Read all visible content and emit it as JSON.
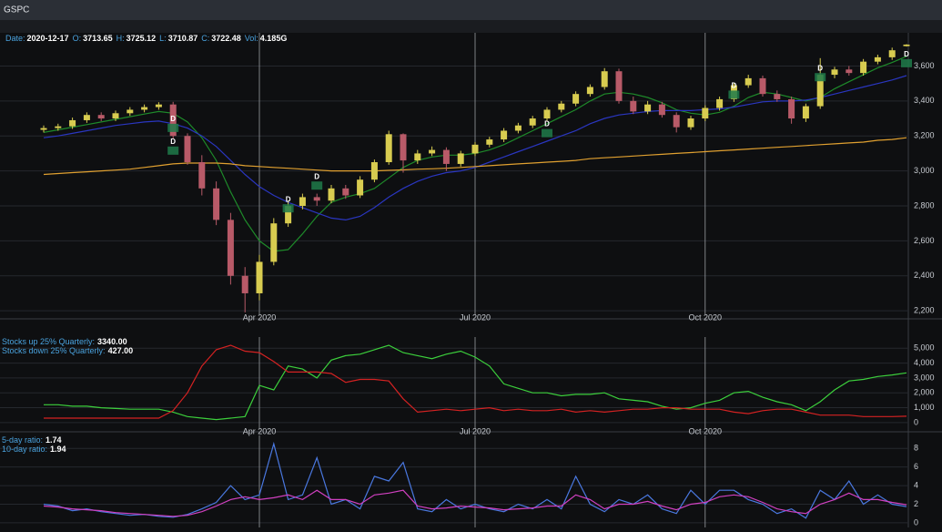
{
  "window_title": "GSPC",
  "chart_data": [
    {
      "type": "candlestick",
      "info": [
        {
          "label": "Date:",
          "value": "2020-12-17"
        },
        {
          "label": "O:",
          "value": "3713.65"
        },
        {
          "label": "H:",
          "value": "3725.12"
        },
        {
          "label": "L:",
          "value": "3710.87"
        },
        {
          "label": "C:",
          "value": "3722.48"
        },
        {
          "label": "Vol:",
          "value": "4.185G"
        }
      ],
      "categories": [
        null,
        null,
        null,
        null,
        null,
        null,
        null,
        null,
        null,
        null,
        null,
        null,
        null,
        null,
        null,
        "Apr 2020",
        null,
        null,
        null,
        null,
        null,
        null,
        null,
        null,
        null,
        null,
        null,
        null,
        null,
        null,
        "Jul 2020",
        null,
        null,
        null,
        null,
        null,
        null,
        null,
        null,
        null,
        null,
        null,
        null,
        null,
        null,
        null,
        "Oct 2020",
        null,
        null,
        null,
        null,
        null,
        null,
        null,
        null,
        null,
        null,
        null,
        null,
        null,
        null
      ],
      "open": [
        3235,
        3245,
        3255,
        3290,
        3320,
        3300,
        3330,
        3350,
        3365,
        3380,
        3200,
        3050,
        2900,
        2720,
        2400,
        2300,
        2480,
        2700,
        2800,
        2850,
        2830,
        2900,
        2860,
        2950,
        3050,
        3210,
        3060,
        3100,
        3120,
        3040,
        3100,
        3150,
        3180,
        3230,
        3260,
        3300,
        3350,
        3385,
        3440,
        3480,
        3570,
        3400,
        3340,
        3380,
        3320,
        3250,
        3300,
        3360,
        3410,
        3490,
        3530,
        3440,
        3410,
        3300,
        3370,
        3550,
        3580,
        3560,
        3625,
        3650,
        3713.65
      ],
      "high": [
        3260,
        3270,
        3305,
        3335,
        3335,
        3345,
        3365,
        3380,
        3393,
        3395,
        3215,
        3090,
        2940,
        2760,
        2450,
        2520,
        2730,
        2830,
        2870,
        2870,
        2920,
        2920,
        2970,
        3065,
        3230,
        3215,
        3120,
        3140,
        3135,
        3115,
        3165,
        3195,
        3245,
        3275,
        3315,
        3365,
        3400,
        3455,
        3495,
        3588,
        3585,
        3425,
        3400,
        3395,
        3335,
        3315,
        3375,
        3425,
        3505,
        3550,
        3545,
        3460,
        3425,
        3385,
        3645,
        3595,
        3600,
        3640,
        3665,
        3705,
        3725.12
      ],
      "low": [
        3220,
        3230,
        3240,
        3275,
        3285,
        3285,
        3315,
        3335,
        3350,
        3185,
        3035,
        2860,
        2690,
        2350,
        2191,
        2260,
        2460,
        2680,
        2780,
        2800,
        2815,
        2840,
        2845,
        2935,
        3035,
        2990,
        3040,
        3085,
        3000,
        3025,
        3085,
        3135,
        3165,
        3215,
        3245,
        3285,
        3335,
        3370,
        3425,
        3465,
        3385,
        3325,
        3325,
        3305,
        3220,
        3235,
        3285,
        3345,
        3395,
        3475,
        3425,
        3395,
        3270,
        3280,
        3355,
        3530,
        3545,
        3545,
        3610,
        3635,
        3710.87
      ],
      "close": [
        3245,
        3255,
        3290,
        3320,
        3300,
        3330,
        3350,
        3365,
        3380,
        3200,
        3050,
        2900,
        2720,
        2400,
        2300,
        2480,
        2700,
        2800,
        2850,
        2830,
        2900,
        2860,
        2950,
        3050,
        3210,
        3060,
        3100,
        3120,
        3040,
        3100,
        3150,
        3180,
        3230,
        3260,
        3300,
        3350,
        3385,
        3440,
        3480,
        3570,
        3400,
        3340,
        3380,
        3320,
        3250,
        3300,
        3360,
        3410,
        3490,
        3530,
        3440,
        3410,
        3300,
        3370,
        3550,
        3580,
        3560,
        3625,
        3650,
        3690,
        3722.48
      ],
      "up_color": "#d8cc50",
      "down_color": "#b85a68",
      "series": [
        {
          "color": "#1e8a2a",
          "values": [
            3220,
            3235,
            3250,
            3265,
            3280,
            3295,
            3310,
            3325,
            3340,
            3330,
            3280,
            3190,
            3060,
            2880,
            2720,
            2600,
            2540,
            2550,
            2640,
            2740,
            2820,
            2850,
            2870,
            2900,
            2960,
            3020,
            3060,
            3080,
            3090,
            3090,
            3100,
            3120,
            3150,
            3190,
            3230,
            3270,
            3310,
            3350,
            3400,
            3440,
            3450,
            3440,
            3420,
            3390,
            3350,
            3330,
            3320,
            3335,
            3370,
            3420,
            3450,
            3440,
            3420,
            3400,
            3420,
            3470,
            3510,
            3550,
            3590,
            3620,
            3655
          ]
        },
        {
          "color": "#2a36c0",
          "values": [
            3190,
            3200,
            3215,
            3230,
            3245,
            3260,
            3270,
            3280,
            3285,
            3270,
            3245,
            3200,
            3140,
            3060,
            2980,
            2910,
            2860,
            2820,
            2790,
            2760,
            2730,
            2720,
            2740,
            2790,
            2850,
            2900,
            2940,
            2970,
            2990,
            3000,
            3020,
            3050,
            3080,
            3110,
            3140,
            3170,
            3200,
            3230,
            3270,
            3300,
            3320,
            3330,
            3340,
            3345,
            3345,
            3345,
            3350,
            3355,
            3365,
            3380,
            3395,
            3400,
            3400,
            3405,
            3420,
            3440,
            3460,
            3480,
            3500,
            3520,
            3545
          ]
        },
        {
          "color": "#e0a030",
          "values": [
            2980,
            2985,
            2990,
            2995,
            3000,
            3005,
            3010,
            3020,
            3030,
            3040,
            3045,
            3045,
            3045,
            3040,
            3030,
            3025,
            3020,
            3015,
            3010,
            3005,
            3000,
            3000,
            3000,
            3000,
            3003,
            3006,
            3010,
            3012,
            3015,
            3020,
            3025,
            3030,
            3035,
            3040,
            3045,
            3050,
            3055,
            3060,
            3070,
            3075,
            3080,
            3085,
            3090,
            3095,
            3100,
            3105,
            3110,
            3115,
            3120,
            3125,
            3130,
            3135,
            3140,
            3145,
            3150,
            3155,
            3160,
            3165,
            3175,
            3180,
            3190
          ]
        }
      ],
      "annotations": [
        {
          "text": "D",
          "x": 9,
          "y": 3280
        },
        {
          "text": "D",
          "x": 9,
          "y": 3150
        },
        {
          "text": "D",
          "x": 17,
          "y": 2820
        },
        {
          "text": "D",
          "x": 19,
          "y": 2950
        },
        {
          "text": "D",
          "x": 35,
          "y": 3250
        },
        {
          "text": "D",
          "x": 48,
          "y": 3470
        },
        {
          "text": "D",
          "x": 54,
          "y": 3570
        },
        {
          "text": "D",
          "x": 60,
          "y": 3650
        }
      ],
      "ylim": [
        2180,
        3790
      ],
      "yticks": [
        {
          "value": 2200,
          "label": "2,200"
        },
        {
          "value": 2400,
          "label": "2,400"
        },
        {
          "value": 2600,
          "label": "2,600"
        },
        {
          "value": 2800,
          "label": "2,800"
        },
        {
          "value": 3000,
          "label": "3,000"
        },
        {
          "value": 3200,
          "label": "3,200"
        },
        {
          "value": 3400,
          "label": "3,400"
        },
        {
          "value": 3600,
          "label": "3,600"
        }
      ],
      "grid": true
    },
    {
      "type": "line",
      "categories": [
        null,
        null,
        null,
        null,
        null,
        null,
        null,
        null,
        null,
        null,
        null,
        null,
        null,
        null,
        null,
        "Apr 2020",
        null,
        null,
        null,
        null,
        null,
        null,
        null,
        null,
        null,
        null,
        null,
        null,
        null,
        null,
        "Jul 2020",
        null,
        null,
        null,
        null,
        null,
        null,
        null,
        null,
        null,
        null,
        null,
        null,
        null,
        null,
        null,
        "Oct 2020",
        null,
        null,
        null,
        null,
        null,
        null,
        null,
        null,
        null,
        null,
        null,
        null,
        null,
        null
      ],
      "series": [
        {
          "name": "Stocks up 25% Quarterly:",
          "last_label": "3340.00",
          "color": "#3ccf3c",
          "values": [
            1200,
            1200,
            1100,
            1100,
            1000,
            950,
            900,
            900,
            900,
            700,
            400,
            300,
            200,
            300,
            400,
            2500,
            2200,
            3800,
            3600,
            3000,
            4200,
            4500,
            4600,
            4900,
            5200,
            4700,
            4500,
            4300,
            4600,
            4800,
            4400,
            3800,
            2600,
            2300,
            2000,
            2000,
            1800,
            1900,
            1900,
            2000,
            1600,
            1500,
            1400,
            1100,
            900,
            1000,
            1300,
            1500,
            2000,
            2100,
            1700,
            1400,
            1200,
            800,
            1400,
            2200,
            2800,
            2900,
            3100,
            3200,
            3340
          ]
        },
        {
          "name": "Stocks down 25% Quarterly:",
          "last_label": "427.00",
          "color": "#d42222",
          "values": [
            300,
            300,
            300,
            300,
            300,
            300,
            300,
            300,
            300,
            800,
            2000,
            3800,
            4900,
            5200,
            4800,
            4700,
            4100,
            3400,
            3400,
            3400,
            3300,
            2700,
            2900,
            2900,
            2800,
            1600,
            700,
            800,
            900,
            800,
            900,
            1000,
            800,
            900,
            800,
            800,
            900,
            700,
            800,
            700,
            800,
            900,
            900,
            1000,
            1000,
            900,
            900,
            900,
            700,
            600,
            800,
            900,
            900,
            700,
            500,
            500,
            500,
            400,
            400,
            400,
            427
          ]
        }
      ],
      "ylim": [
        -375,
        5750
      ],
      "yticks": [
        0,
        {
          "value": 1000,
          "label": "1,000"
        },
        {
          "value": 2000,
          "label": "2,000"
        },
        {
          "value": 3000,
          "label": "3,000"
        },
        {
          "value": 4000,
          "label": "4,000"
        },
        {
          "value": 5000,
          "label": "5,000"
        }
      ],
      "grid": true
    },
    {
      "type": "line",
      "series": [
        {
          "name": "5-day ratio:",
          "last_label": "1.74",
          "color": "#4a78e0",
          "values": [
            2.0,
            1.8,
            1.3,
            1.5,
            1.2,
            1.0,
            0.8,
            0.9,
            0.7,
            0.6,
            0.9,
            1.5,
            2.2,
            4.0,
            2.5,
            3.0,
            8.5,
            2.5,
            3.0,
            7.0,
            2.0,
            2.5,
            1.5,
            5.0,
            4.5,
            6.5,
            1.5,
            1.2,
            2.5,
            1.5,
            2.0,
            1.5,
            1.2,
            2.0,
            1.5,
            2.5,
            1.5,
            5.0,
            2.0,
            1.2,
            2.5,
            2.0,
            3.0,
            1.5,
            1.0,
            3.5,
            2.0,
            3.5,
            3.5,
            2.5,
            2.0,
            1.0,
            1.5,
            0.5,
            3.5,
            2.5,
            4.5,
            2.0,
            3.0,
            2.0,
            1.74
          ]
        },
        {
          "name": "10-day ratio:",
          "last_label": "1.94",
          "color": "#d040c0",
          "values": [
            1.8,
            1.7,
            1.5,
            1.4,
            1.3,
            1.1,
            1.0,
            0.9,
            0.8,
            0.7,
            0.8,
            1.2,
            1.8,
            2.5,
            2.8,
            2.5,
            2.7,
            3.0,
            2.5,
            3.5,
            2.5,
            2.5,
            2.0,
            3.0,
            3.2,
            3.5,
            1.8,
            1.5,
            1.6,
            1.8,
            1.7,
            1.6,
            1.4,
            1.5,
            1.6,
            1.8,
            1.8,
            3.0,
            2.5,
            1.5,
            2.0,
            2.0,
            2.3,
            1.8,
            1.4,
            2.0,
            2.2,
            2.8,
            3.0,
            2.8,
            2.2,
            1.5,
            1.2,
            1.0,
            2.0,
            2.5,
            3.2,
            2.5,
            2.5,
            2.2,
            1.94
          ]
        }
      ],
      "ylim": [
        -0.5,
        9.4
      ],
      "yticks": [
        0,
        2,
        4,
        6,
        8
      ],
      "grid": true
    }
  ]
}
